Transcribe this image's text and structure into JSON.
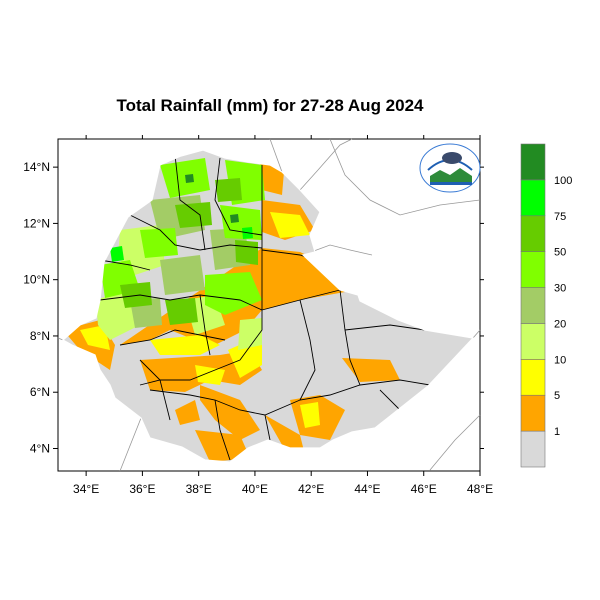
{
  "title": "Total Rainfall (mm) for 27-28 Aug 2024",
  "map": {
    "lon_range": [
      33,
      48
    ],
    "lat_range": [
      3.2,
      15
    ],
    "x_ticks": [
      "34°E",
      "36°E",
      "38°E",
      "40°E",
      "42°E",
      "44°E",
      "46°E",
      "48°E"
    ],
    "y_ticks": [
      "4°N",
      "6°N",
      "8°N",
      "10°N",
      "12°N",
      "14°N"
    ]
  },
  "legend": {
    "labels": [
      "1",
      "5",
      "10",
      "20",
      "30",
      "50",
      "75",
      "100"
    ],
    "colors": [
      "#d9d9d9",
      "#ffa500",
      "#ffff00",
      "#ccff66",
      "#a3cc66",
      "#80ff00",
      "#66cc00",
      "#00ff00",
      "#228b22"
    ]
  },
  "colors": {
    "no_rain": "#d9d9d9",
    "country_border": "#ffffff",
    "admin_border": "#000000",
    "neighbor_border": "#999999"
  },
  "logo": {
    "icon": "meteorology-agency-logo-icon"
  }
}
